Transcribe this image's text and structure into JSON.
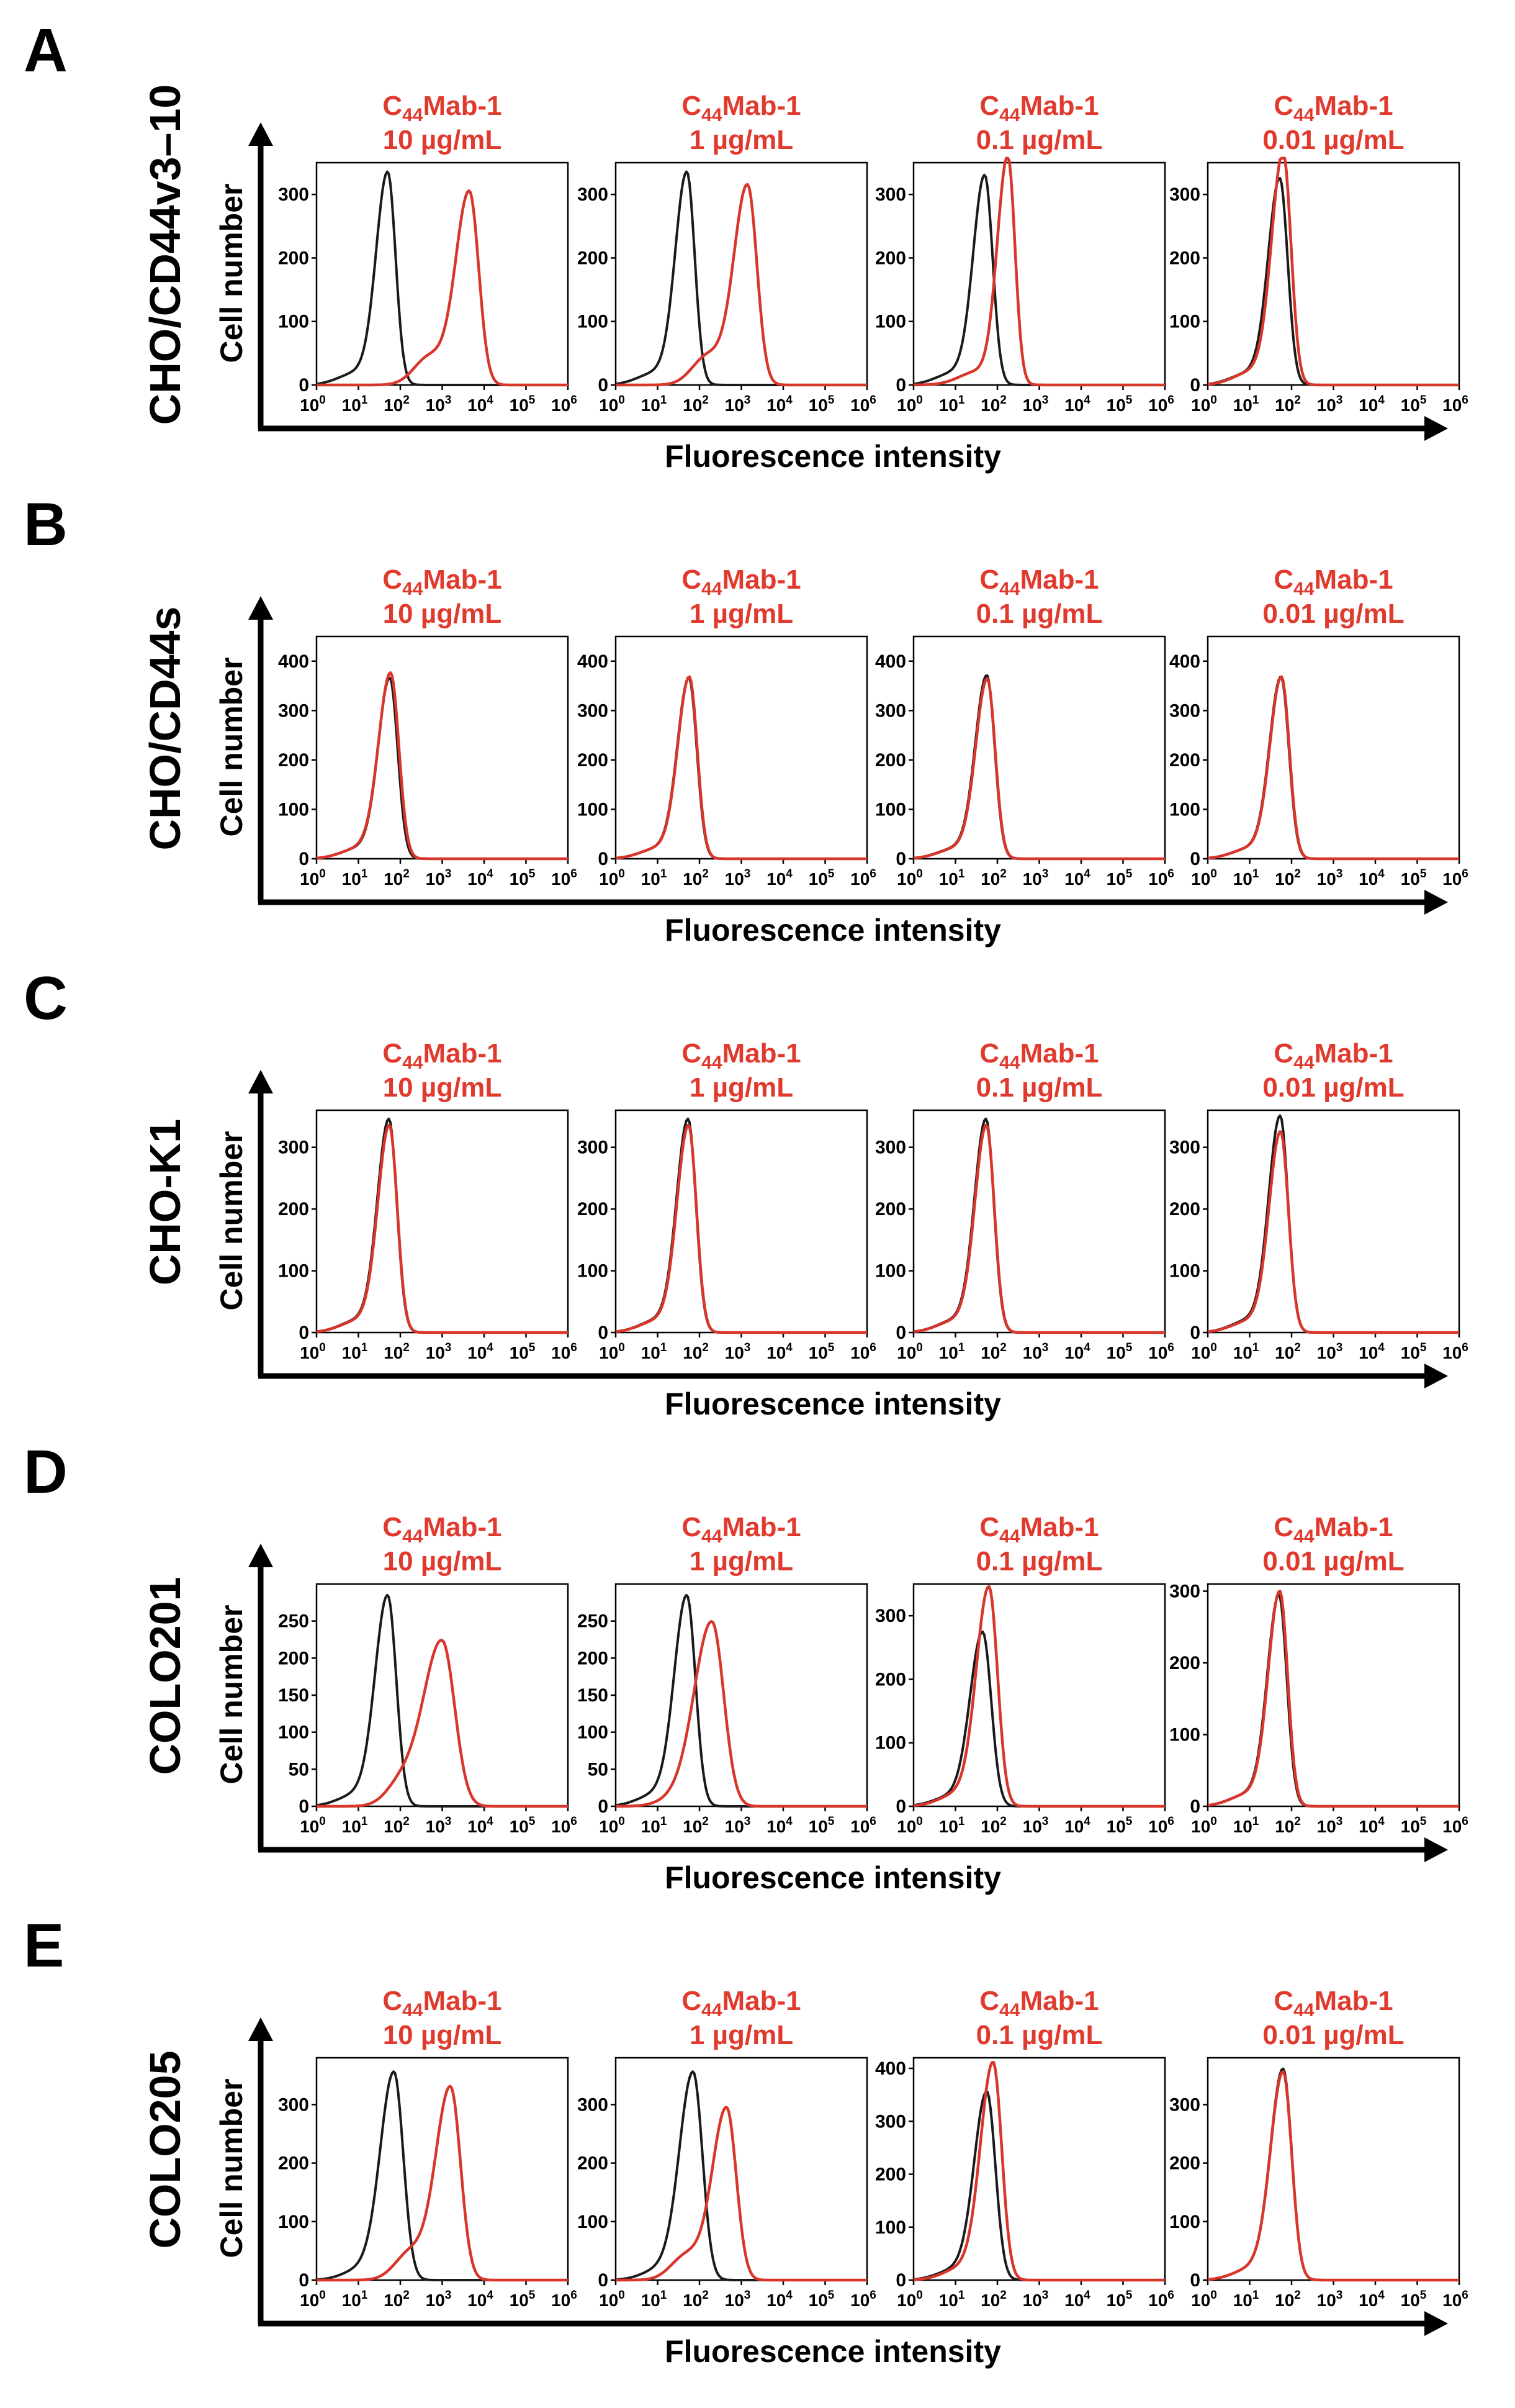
{
  "colors": {
    "control": "#1a1a1a",
    "treated": "#d8362b",
    "label_red": "#e03a2e",
    "axis": "#000000"
  },
  "figure_axes": {
    "x_label": "Fluorescence intensity",
    "y_label": "Cell number"
  },
  "x_tick_labels": [
    {
      "base": "10",
      "exp": "0"
    },
    {
      "base": "10",
      "exp": "1"
    },
    {
      "base": "10",
      "exp": "2"
    },
    {
      "base": "10",
      "exp": "3"
    },
    {
      "base": "10",
      "exp": "4"
    },
    {
      "base": "10",
      "exp": "5"
    },
    {
      "base": "10",
      "exp": "6"
    }
  ],
  "concentrations": [
    "10 µg/mL",
    "1 µg/mL",
    "0.1 µg/mL",
    "0.01 µg/mL"
  ],
  "antibody": {
    "prefix": "C",
    "sub": "44",
    "suffix": "Mab-1"
  },
  "chart_data": [
    {
      "panel": "A",
      "cell_line": "CHO/CD44v3–10",
      "type": "histogram",
      "xscale": "log",
      "xlim": [
        1,
        1000000
      ],
      "ylim": [
        0,
        350
      ],
      "yticks": [
        0,
        100,
        200,
        300
      ],
      "xlabel": "Fluorescence intensity",
      "ylabel": "Cell number",
      "series": [
        {
          "concentration": "10 µg/mL",
          "control_peak_log": 1.7,
          "control_height": 330,
          "control_width": 0.22,
          "treated_peak_log": 3.65,
          "treated_height": 300,
          "treated_width": 0.26
        },
        {
          "concentration": "1 µg/mL",
          "control_peak_log": 1.7,
          "control_height": 330,
          "control_width": 0.22,
          "treated_peak_log": 3.15,
          "treated_height": 310,
          "treated_width": 0.26
        },
        {
          "concentration": "0.1 µg/mL",
          "control_peak_log": 1.7,
          "control_height": 325,
          "control_width": 0.22,
          "treated_peak_log": 2.25,
          "treated_height": 355,
          "treated_width": 0.2
        },
        {
          "concentration": "0.01 µg/mL",
          "control_peak_log": 1.72,
          "control_height": 320,
          "control_width": 0.22,
          "treated_peak_log": 1.8,
          "treated_height": 360,
          "treated_width": 0.22
        }
      ]
    },
    {
      "panel": "B",
      "cell_line": "CHO/CD44s",
      "type": "histogram",
      "xscale": "log",
      "xlim": [
        1,
        1000000
      ],
      "ylim": [
        0,
        450
      ],
      "yticks": [
        0,
        100,
        200,
        300,
        400
      ],
      "xlabel": "Fluorescence intensity",
      "ylabel": "Cell number",
      "series": [
        {
          "concentration": "10 µg/mL",
          "control_peak_log": 1.75,
          "control_height": 360,
          "control_width": 0.22,
          "treated_peak_log": 1.77,
          "treated_height": 370,
          "treated_width": 0.23
        },
        {
          "concentration": "1 µg/mL",
          "control_peak_log": 1.75,
          "control_height": 360,
          "control_width": 0.22,
          "treated_peak_log": 1.76,
          "treated_height": 362,
          "treated_width": 0.22
        },
        {
          "concentration": "0.1 µg/mL",
          "control_peak_log": 1.75,
          "control_height": 365,
          "control_width": 0.22,
          "treated_peak_log": 1.76,
          "treated_height": 358,
          "treated_width": 0.22
        },
        {
          "concentration": "0.01 µg/mL",
          "control_peak_log": 1.75,
          "control_height": 362,
          "control_width": 0.22,
          "treated_peak_log": 1.76,
          "treated_height": 362,
          "treated_width": 0.22
        }
      ]
    },
    {
      "panel": "C",
      "cell_line": "CHO-K1",
      "type": "histogram",
      "xscale": "log",
      "xlim": [
        1,
        1000000
      ],
      "ylim": [
        0,
        360
      ],
      "yticks": [
        0,
        100,
        200,
        300
      ],
      "xlabel": "Fluorescence intensity",
      "ylabel": "Cell number",
      "series": [
        {
          "concentration": "10 µg/mL",
          "control_peak_log": 1.73,
          "control_height": 340,
          "control_width": 0.22,
          "treated_peak_log": 1.74,
          "treated_height": 330,
          "treated_width": 0.22
        },
        {
          "concentration": "1 µg/mL",
          "control_peak_log": 1.73,
          "control_height": 340,
          "control_width": 0.22,
          "treated_peak_log": 1.74,
          "treated_height": 330,
          "treated_width": 0.22
        },
        {
          "concentration": "0.1 µg/mL",
          "control_peak_log": 1.73,
          "control_height": 340,
          "control_width": 0.22,
          "treated_peak_log": 1.74,
          "treated_height": 330,
          "treated_width": 0.22
        },
        {
          "concentration": "0.01 µg/mL",
          "control_peak_log": 1.73,
          "control_height": 345,
          "control_width": 0.22,
          "treated_peak_log": 1.74,
          "treated_height": 320,
          "treated_width": 0.22
        }
      ]
    },
    {
      "panels_note": "D",
      "panel": "D",
      "cell_line": "COLO201",
      "type": "histogram",
      "xscale": "log",
      "xlim": [
        1,
        1000000
      ],
      "ylim": [
        0,
        300
      ],
      "yticks": [
        0,
        50,
        100,
        150,
        200,
        250
      ],
      "ylim_per_plot": [
        [
          0,
          300
        ],
        [
          0,
          300
        ],
        [
          0,
          350
        ],
        [
          0,
          310
        ]
      ],
      "yticks_per_plot": [
        [
          0,
          50,
          100,
          150,
          200,
          250
        ],
        [
          0,
          50,
          100,
          150,
          200,
          250
        ],
        [
          0,
          100,
          200,
          300
        ],
        [
          0,
          100,
          200,
          300
        ]
      ],
      "xlabel": "Fluorescence intensity",
      "ylabel": "Cell number",
      "series": [
        {
          "concentration": "10 µg/mL",
          "control_peak_log": 1.7,
          "control_height": 280,
          "control_width": 0.24,
          "treated_peak_log": 3.0,
          "treated_height": 220,
          "treated_width": 0.35
        },
        {
          "concentration": "1 µg/mL",
          "control_peak_log": 1.7,
          "control_height": 280,
          "control_width": 0.24,
          "treated_peak_log": 2.3,
          "treated_height": 245,
          "treated_width": 0.33
        },
        {
          "concentration": "0.1 µg/mL",
          "control_peak_log": 1.65,
          "control_height": 270,
          "control_width": 0.24,
          "treated_peak_log": 1.8,
          "treated_height": 340,
          "treated_width": 0.24
        },
        {
          "concentration": "0.01 µg/mL",
          "control_peak_log": 1.7,
          "control_height": 290,
          "control_width": 0.22,
          "treated_peak_log": 1.72,
          "treated_height": 295,
          "treated_width": 0.22
        }
      ]
    },
    {
      "panel": "E",
      "cell_line": "COLO205",
      "type": "histogram",
      "xscale": "log",
      "xlim": [
        1,
        1000000
      ],
      "ylim": [
        0,
        380
      ],
      "yticks": [
        0,
        100,
        200,
        300
      ],
      "ylim_per_plot": [
        [
          0,
          380
        ],
        [
          0,
          380
        ],
        [
          0,
          420
        ],
        [
          0,
          380
        ]
      ],
      "yticks_per_plot": [
        [
          0,
          100,
          200,
          300
        ],
        [
          0,
          100,
          200,
          300
        ],
        [
          0,
          100,
          200,
          300,
          400
        ],
        [
          0,
          100,
          200,
          300
        ]
      ],
      "xlabel": "Fluorescence intensity",
      "ylabel": "Cell number",
      "series": [
        {
          "concentration": "10 µg/mL",
          "control_peak_log": 1.85,
          "control_height": 350,
          "control_width": 0.26,
          "treated_peak_log": 3.2,
          "treated_height": 325,
          "treated_width": 0.28
        },
        {
          "concentration": "1 µg/mL",
          "control_peak_log": 1.85,
          "control_height": 350,
          "control_width": 0.26,
          "treated_peak_log": 2.65,
          "treated_height": 290,
          "treated_width": 0.27
        },
        {
          "concentration": "0.1 µg/mL",
          "control_peak_log": 1.75,
          "control_height": 350,
          "control_width": 0.24,
          "treated_peak_log": 1.9,
          "treated_height": 405,
          "treated_width": 0.24
        },
        {
          "concentration": "0.01 µg/mL",
          "control_peak_log": 1.8,
          "control_height": 355,
          "control_width": 0.24,
          "treated_peak_log": 1.8,
          "treated_height": 350,
          "treated_width": 0.24
        }
      ]
    }
  ]
}
